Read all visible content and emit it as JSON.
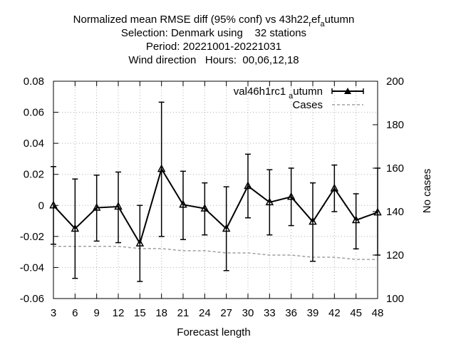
{
  "title_lines": [
    "Normalized mean RMSE diff (95% conf) vs 43h22",
    "Selection: Denmark using    32 stations",
    "Period: 20221001-20221031",
    "Wind direction   Hours:  00,06,12,18"
  ],
  "title_sub_r": "r",
  "title_mid": "ef",
  "title_sub_a": "a",
  "title_end": "utumn",
  "chart_data": {
    "type": "line",
    "xlabel": "Forecast length",
    "ylabel": "",
    "y2label": "No cases",
    "x": [
      3,
      6,
      9,
      12,
      15,
      18,
      21,
      24,
      27,
      30,
      33,
      36,
      39,
      42,
      45,
      48
    ],
    "xlim": [
      3,
      48
    ],
    "ylim": [
      -0.06,
      0.08
    ],
    "y2lim": [
      100,
      200
    ],
    "x_ticks": [
      "3",
      "6",
      "9",
      "12",
      "15",
      "18",
      "21",
      "24",
      "27",
      "30",
      "33",
      "36",
      "39",
      "42",
      "45",
      "48"
    ],
    "y_ticks": [
      "-0.06",
      "-0.04",
      "-0.02",
      "0",
      "0.02",
      "0.04",
      "0.06",
      "0.08"
    ],
    "y2_ticks": [
      "100",
      "120",
      "140",
      "160",
      "180",
      "200"
    ],
    "grid": true,
    "legend_position": "top-right",
    "series": [
      {
        "name_main": "val46h1rc1",
        "name_sub": "a",
        "name_end": "utumn",
        "axis": "y",
        "color": "#000000",
        "values": [
          0.0,
          -0.015,
          -0.0015,
          -0.0008,
          -0.0245,
          0.0235,
          0.0005,
          -0.002,
          -0.015,
          0.0125,
          0.002,
          0.0055,
          -0.0105,
          0.011,
          -0.0095,
          -0.0045
        ],
        "error_low": [
          -0.025,
          -0.047,
          -0.023,
          -0.024,
          -0.049,
          -0.02,
          -0.022,
          -0.019,
          -0.042,
          -0.008,
          -0.019,
          -0.013,
          -0.036,
          -0.004,
          -0.028,
          -0.032
        ],
        "error_high": [
          0.025,
          0.017,
          0.0195,
          0.0215,
          0.0,
          0.0665,
          0.022,
          0.0145,
          0.012,
          0.033,
          0.023,
          0.024,
          0.0145,
          0.026,
          0.0075,
          0.024
        ]
      },
      {
        "name": "Cases",
        "axis": "y2",
        "color": "#a0a0a0",
        "values": [
          124,
          124,
          124,
          124,
          123,
          123,
          122,
          122,
          121,
          121,
          120,
          120,
          119,
          119,
          118,
          118
        ]
      }
    ]
  }
}
